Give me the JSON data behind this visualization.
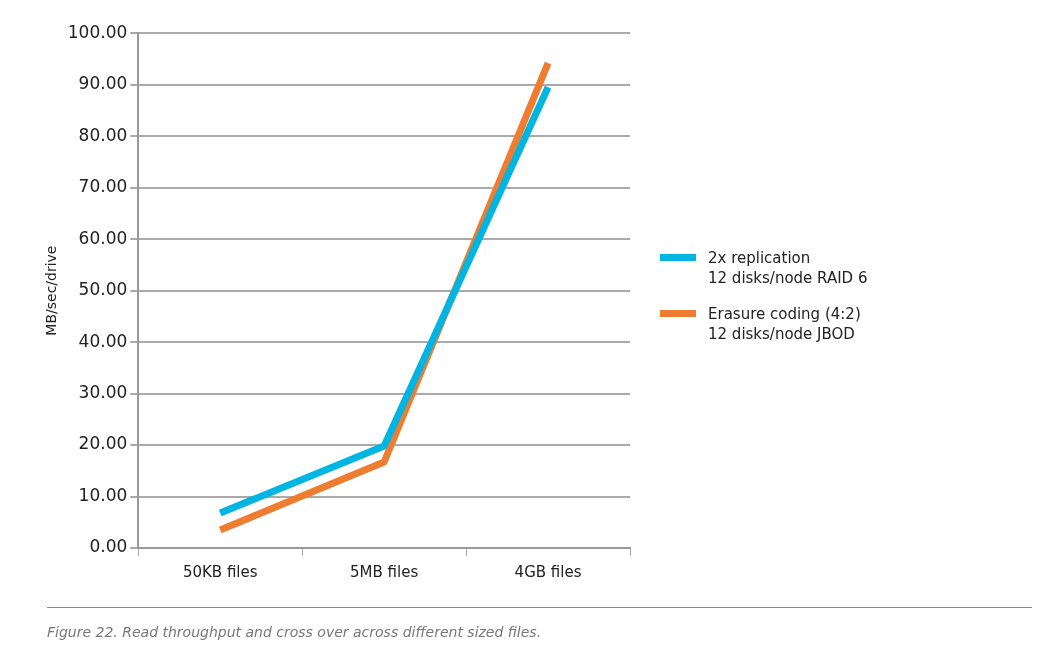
{
  "chart_data": {
    "type": "line",
    "categories": [
      "50KB files",
      "5MB files",
      "4GB files"
    ],
    "series": [
      {
        "name": "2x replication\n12 disks/node RAID 6",
        "color": "#00b5e2",
        "values": [
          6.8,
          19.8,
          89.5
        ]
      },
      {
        "name": "Erasure coding (4:2)\n12 disks/node JBOD",
        "color": "#ee7d31",
        "values": [
          3.5,
          16.7,
          94.2
        ]
      }
    ],
    "ylabel": "MB/sec/drive",
    "ylim": [
      0,
      100
    ],
    "yticks": [
      {
        "value": 0,
        "label": "0.00"
      },
      {
        "value": 10,
        "label": "10.00"
      },
      {
        "value": 20,
        "label": "20.00"
      },
      {
        "value": 30,
        "label": "30.00"
      },
      {
        "value": 40,
        "label": "40.00"
      },
      {
        "value": 50,
        "label": "50.00"
      },
      {
        "value": 60,
        "label": "60.00"
      },
      {
        "value": 70,
        "label": "70.00"
      },
      {
        "value": 80,
        "label": "80.00"
      },
      {
        "value": 90,
        "label": "90.00"
      },
      {
        "value": 100,
        "label": "100.00"
      }
    ],
    "grid": "y",
    "legend": "right",
    "marker": "none",
    "line_style": "solid",
    "annotations": [
      "Figure 22. Read throughput and cross over across different sized files."
    ]
  }
}
